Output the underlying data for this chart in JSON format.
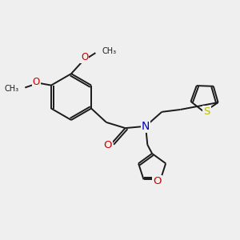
{
  "background_color": "#efefef",
  "bond_color": "#1a1a1a",
  "atom_colors": {
    "O": "#cc0000",
    "N": "#0000cc",
    "S": "#bbbb00",
    "C": "#1a1a1a"
  },
  "font_size": 8.5,
  "lw": 1.4,
  "figsize": [
    3.0,
    3.0
  ],
  "dpi": 100
}
